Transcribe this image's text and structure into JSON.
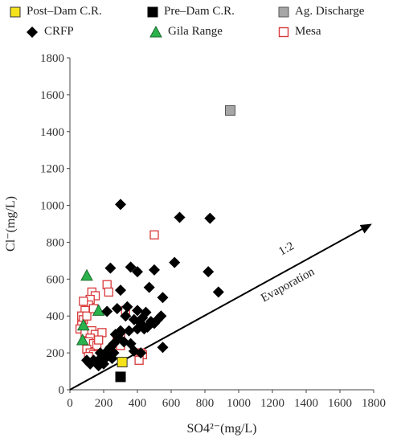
{
  "legend": [
    {
      "label": "Post–Dam C.R.",
      "marker": "square",
      "fill": "#f5e21a",
      "stroke": "#333333"
    },
    {
      "label": "Pre–Dam C.R.",
      "marker": "square",
      "fill": "#000000",
      "stroke": "#000000"
    },
    {
      "label": "Ag. Discharge",
      "marker": "square",
      "fill": "#a6a6a6",
      "stroke": "#555555"
    },
    {
      "label": "CRFP",
      "marker": "diamond",
      "fill": "#000000",
      "stroke": "#000000"
    },
    {
      "label": "Gila Range",
      "marker": "triangle",
      "fill": "#2bb24c",
      "stroke": "#1a6b2e"
    },
    {
      "label": "Mesa",
      "marker": "square-open",
      "fill": "none",
      "stroke": "#d9383a"
    }
  ],
  "chart_data": {
    "type": "scatter",
    "xlabel": "SO4²⁻(mg/L)",
    "ylabel": "Cl⁻(mg/L)",
    "xlim": [
      0,
      1800
    ],
    "ylim": [
      0,
      1800
    ],
    "xticks": [
      "0",
      "200",
      "400",
      "600",
      "800",
      "1000",
      "1200",
      "1400",
      "1600",
      "1800"
    ],
    "yticks": [
      "0",
      "200",
      "400",
      "600",
      "800",
      "1000",
      "1200",
      "1400",
      "1600",
      "1800"
    ],
    "grid": false,
    "legend_position": "top",
    "annotations": [
      {
        "text": "1:2",
        "type": "arrow-label"
      },
      {
        "text": "Evaporation",
        "type": "arrow-label"
      }
    ],
    "arrow": {
      "from": [
        0,
        0
      ],
      "to": [
        1790,
        900
      ]
    },
    "series": [
      {
        "name": "Post–Dam C.R.",
        "marker": "square",
        "fill": "#f5e21a",
        "stroke": "#333333",
        "points": [
          [
            310,
            150
          ]
        ]
      },
      {
        "name": "Pre–Dam C.R.",
        "marker": "square",
        "fill": "#000000",
        "stroke": "#000000",
        "points": [
          [
            300,
            70
          ]
        ]
      },
      {
        "name": "Ag. Discharge",
        "marker": "square",
        "fill": "#a6a6a6",
        "stroke": "#555555",
        "points": [
          [
            950,
            1515
          ]
        ]
      },
      {
        "name": "CRFP",
        "marker": "diamond",
        "fill": "#000000",
        "stroke": "#000000",
        "points": [
          [
            300,
            1005
          ],
          [
            650,
            935
          ],
          [
            830,
            930
          ],
          [
            240,
            660
          ],
          [
            360,
            665
          ],
          [
            400,
            640
          ],
          [
            500,
            650
          ],
          [
            620,
            690
          ],
          [
            820,
            640
          ],
          [
            300,
            540
          ],
          [
            470,
            555
          ],
          [
            880,
            530
          ],
          [
            550,
            500
          ],
          [
            220,
            425
          ],
          [
            330,
            400
          ],
          [
            340,
            450
          ],
          [
            400,
            430
          ],
          [
            430,
            390
          ],
          [
            450,
            420
          ],
          [
            380,
            380
          ],
          [
            420,
            360
          ],
          [
            480,
            370
          ],
          [
            520,
            380
          ],
          [
            540,
            400
          ],
          [
            460,
            340
          ],
          [
            400,
            330
          ],
          [
            350,
            320
          ],
          [
            300,
            310
          ],
          [
            270,
            300
          ],
          [
            290,
            280
          ],
          [
            320,
            260
          ],
          [
            260,
            250
          ],
          [
            240,
            230
          ],
          [
            230,
            210
          ],
          [
            210,
            200
          ],
          [
            200,
            180
          ],
          [
            190,
            160
          ],
          [
            180,
            170
          ],
          [
            170,
            150
          ],
          [
            160,
            140
          ],
          [
            150,
            150
          ],
          [
            140,
            160
          ],
          [
            130,
            150
          ],
          [
            120,
            140
          ],
          [
            110,
            150
          ],
          [
            100,
            160
          ],
          [
            170,
            130
          ],
          [
            200,
            140
          ],
          [
            250,
            170
          ],
          [
            360,
            250
          ],
          [
            380,
            210
          ],
          [
            420,
            200
          ],
          [
            550,
            230
          ],
          [
            300,
            320
          ],
          [
            280,
            300
          ],
          [
            260,
            200
          ],
          [
            230,
            190
          ],
          [
            210,
            170
          ],
          [
            440,
            330
          ],
          [
            500,
            360
          ],
          [
            280,
            440
          ],
          [
            180,
            200
          ]
        ]
      },
      {
        "name": "Gila Range",
        "marker": "triangle",
        "fill": "#2bb24c",
        "stroke": "#1a6b2e",
        "points": [
          [
            100,
            620
          ],
          [
            170,
            430
          ],
          [
            80,
            350
          ],
          [
            75,
            270
          ]
        ]
      },
      {
        "name": "Mesa",
        "marker": "square-open",
        "fill": "none",
        "stroke": "#d9383a",
        "points": [
          [
            500,
            840
          ],
          [
            220,
            570
          ],
          [
            230,
            530
          ],
          [
            130,
            530
          ],
          [
            150,
            510
          ],
          [
            120,
            490
          ],
          [
            110,
            460
          ],
          [
            80,
            480
          ],
          [
            90,
            430
          ],
          [
            70,
            400
          ],
          [
            80,
            380
          ],
          [
            70,
            350
          ],
          [
            60,
            330
          ],
          [
            90,
            310
          ],
          [
            130,
            320
          ],
          [
            150,
            300
          ],
          [
            120,
            280
          ],
          [
            110,
            260
          ],
          [
            140,
            250
          ],
          [
            160,
            240
          ],
          [
            100,
            220
          ],
          [
            120,
            200
          ],
          [
            140,
            190
          ],
          [
            110,
            180
          ],
          [
            330,
            430
          ],
          [
            300,
            300
          ],
          [
            280,
            270
          ],
          [
            300,
            240
          ],
          [
            420,
            200
          ],
          [
            430,
            190
          ],
          [
            410,
            160
          ],
          [
            190,
            310
          ],
          [
            170,
            270
          ],
          [
            100,
            400
          ],
          [
            140,
            440
          ]
        ]
      }
    ]
  }
}
